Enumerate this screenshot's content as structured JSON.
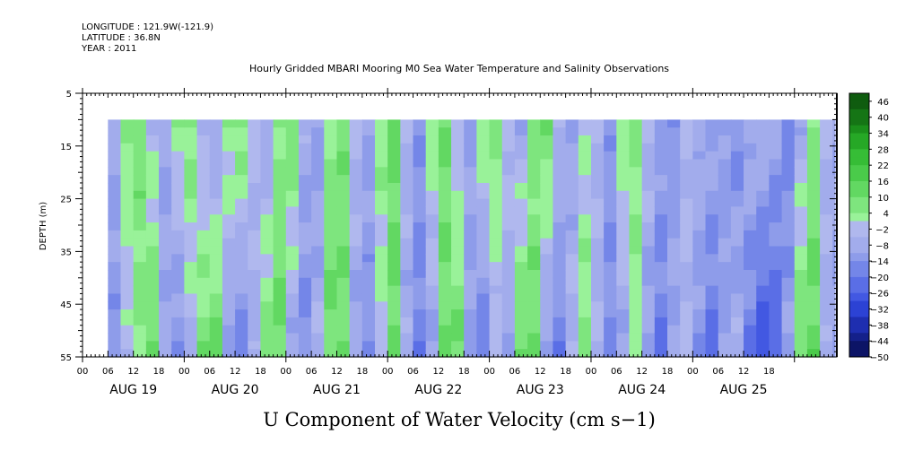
{
  "header": {
    "longitude": "LONGITUDE : 121.9W(-121.9)",
    "latitude": "LATITUDE : 36.8N",
    "year": "YEAR : 2011"
  },
  "chart_data": {
    "type": "heatmap",
    "title": "Hourly Gridded MBARI Mooring M0 Sea Water Temperature and Salinity Observations",
    "xlabel": "U Component of Water Velocity (cm s−1)",
    "ylabel": "DEPTH (m)",
    "ylim": [
      55,
      5
    ],
    "y_ticks": [
      5,
      15,
      25,
      35,
      45,
      55
    ],
    "x_hour_ticks": [
      "00",
      "06",
      "12",
      "18",
      "00",
      "06",
      "12",
      "18",
      "00",
      "06",
      "12",
      "18",
      "00",
      "06",
      "12",
      "18",
      "00",
      "06",
      "12",
      "18",
      "00",
      "06",
      "12",
      "18",
      "00",
      "06",
      "12",
      "18"
    ],
    "x_days": [
      "AUG 19",
      "AUG 20",
      "AUG 21",
      "AUG 22",
      "AUG 23",
      "AUG 24",
      "AUG 25"
    ],
    "data_start": "AUG 19 06:00",
    "data_depth_range": [
      10,
      55
    ],
    "colorbar": {
      "labels": [
        "46",
        "40",
        "34",
        "28",
        "22",
        "16",
        "10",
        "4",
        "−2",
        "−8",
        "−14",
        "−20",
        "−26",
        "−32",
        "−38",
        "−44",
        "−50"
      ],
      "range": [
        -50,
        49
      ],
      "positive_colors": [
        "#99f299",
        "#7ee57e",
        "#62d862",
        "#4acb4a",
        "#36bd36",
        "#26a826",
        "#1b8f1b",
        "#157515",
        "#0f5c0f"
      ],
      "negative_colors": [
        "#b0b8ee",
        "#a2acec",
        "#8e9cea",
        "#7486e8",
        "#5a6ee6",
        "#4258e2",
        "#2c42d4",
        "#1e2eb0",
        "#14208a",
        "#0c1466"
      ]
    },
    "profiles": {
      "times_hours_since_aug19_00": [
        6,
        9,
        12,
        15,
        18,
        21,
        24,
        27,
        30,
        33,
        36,
        39,
        42,
        45,
        48,
        51,
        54,
        57,
        60,
        63,
        66,
        69,
        72,
        75,
        78,
        81,
        84,
        87,
        90,
        93,
        96,
        99,
        102,
        105,
        108,
        111,
        114,
        117,
        120,
        123,
        126,
        129,
        132,
        135,
        138,
        141,
        144,
        147,
        150,
        153,
        156,
        159,
        162,
        165,
        168,
        171,
        174,
        177
      ],
      "u_at_10m": [
        -8,
        6,
        9,
        -4,
        -10,
        4,
        8,
        -6,
        -12,
        5,
        9,
        -3,
        -11,
        6,
        10,
        -7,
        -12,
        6,
        9,
        -4,
        -10,
        5,
        12,
        -6,
        -13,
        3,
        10,
        -5,
        -9,
        6,
        8,
        -2,
        -8,
        7,
        10,
        -4,
        -10,
        -2,
        -6,
        -12,
        4,
        8,
        -3,
        -10,
        -14,
        -4,
        -6,
        -8,
        -12,
        -16,
        -6,
        -4,
        -10,
        -18,
        -8,
        6,
        -4,
        -8
      ],
      "u_at_55m": [
        -14,
        -4,
        6,
        12,
        -8,
        -16,
        -6,
        10,
        14,
        -12,
        -18,
        -8,
        10,
        12,
        -10,
        -16,
        -6,
        12,
        10,
        -10,
        -14,
        -2,
        12,
        -8,
        -18,
        -10,
        10,
        12,
        -12,
        -20,
        -6,
        -10,
        12,
        10,
        -14,
        -18,
        -4,
        8,
        -6,
        -16,
        -10,
        2,
        -12,
        -20,
        -8,
        -4,
        -14,
        -22,
        -12,
        -6,
        -20,
        -28,
        -24,
        -10,
        12,
        14,
        -8,
        -12
      ]
    }
  }
}
